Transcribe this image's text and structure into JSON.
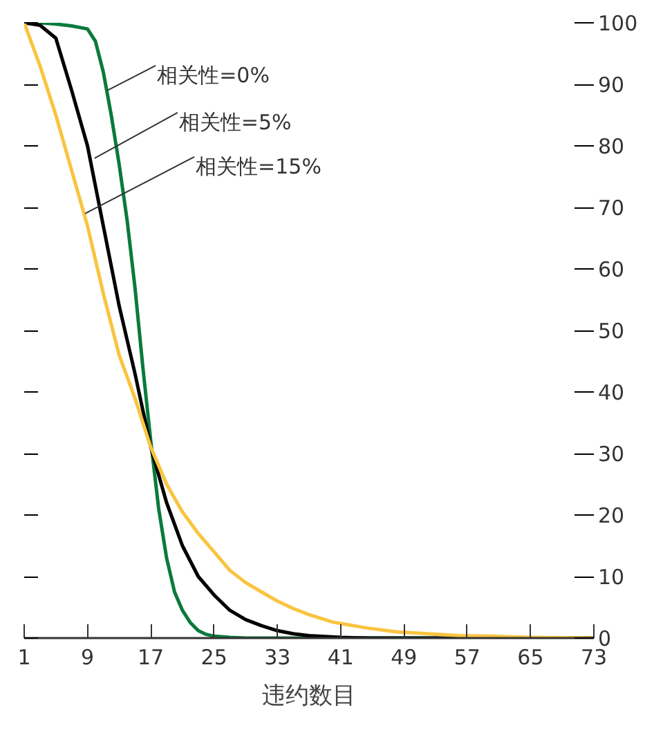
{
  "chart_data": {
    "type": "line",
    "xlabel": "违约数目",
    "xlim": [
      1,
      73
    ],
    "xticks": [
      1,
      9,
      17,
      25,
      33,
      41,
      49,
      57,
      65,
      73
    ],
    "ylim": [
      0,
      100
    ],
    "yticks": [
      0,
      10,
      20,
      30,
      40,
      50,
      60,
      70,
      80,
      90,
      100
    ],
    "grid": false,
    "marker": "none",
    "line_style": "solid",
    "series": [
      {
        "color": "#0a7a3c",
        "x": [
          1,
          3,
          5,
          7,
          9,
          10,
          11,
          12,
          13,
          14,
          15,
          16,
          17,
          18,
          19,
          20,
          21,
          22,
          23,
          24,
          25,
          27,
          29,
          73
        ],
        "values": [
          100,
          100,
          99.8,
          99.5,
          99,
          97,
          92,
          85,
          77,
          68,
          57,
          44,
          32,
          21,
          13,
          7.5,
          4.5,
          2.5,
          1.2,
          0.6,
          0.3,
          0.1,
          0,
          0
        ]
      },
      {
        "color": "#000000",
        "x": [
          1,
          3,
          5,
          7,
          9,
          11,
          13,
          15,
          17,
          19,
          21,
          23,
          25,
          27,
          29,
          31,
          33,
          35,
          37,
          41,
          45,
          73
        ],
        "values": [
          100,
          99.6,
          97.5,
          89,
          80,
          67,
          54,
          43,
          31,
          22,
          15,
          10,
          7,
          4.5,
          3,
          2,
          1.2,
          0.7,
          0.4,
          0.1,
          0,
          0
        ]
      },
      {
        "color": "#f9c440",
        "x": [
          1,
          3,
          5,
          7,
          9,
          11,
          13,
          15,
          17,
          19,
          21,
          23,
          25,
          27,
          29,
          31,
          33,
          35,
          37,
          40,
          44,
          48,
          52,
          56,
          60,
          65,
          73
        ],
        "values": [
          100,
          93,
          85,
          76,
          67,
          56,
          46,
          39,
          31,
          25,
          20.5,
          17,
          14,
          11,
          9,
          7.5,
          6,
          4.8,
          3.8,
          2.6,
          1.7,
          1,
          0.7,
          0.4,
          0.3,
          0.1,
          0
        ]
      }
    ],
    "annotations": [
      {
        "text": "相关性=0%",
        "x": 11.5,
        "y": 89
      },
      {
        "text": "相关性=5%",
        "x": 9.9,
        "y": 78
      },
      {
        "text": "相关性=15%",
        "x": 8.7,
        "y": 69
      }
    ]
  }
}
